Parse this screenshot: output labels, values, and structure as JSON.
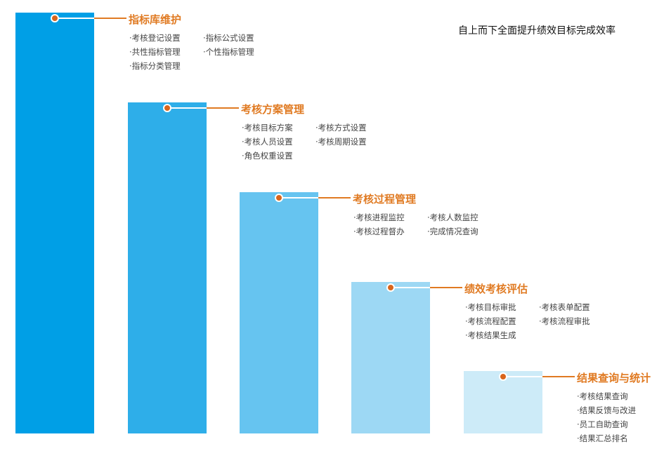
{
  "slogan": "自上而下全面提升绩效目标完成效率",
  "colors": {
    "accent": "#e07a22",
    "bars": [
      "#009fe6",
      "#2eaee9",
      "#66c4f0",
      "#9dd8f4",
      "#cdebf8"
    ]
  },
  "stages": [
    {
      "title": "指标库维护",
      "items": [
        "·考核登记设置",
        "·指标公式设置",
        "·共性指标管理",
        "·个性指标管理",
        "·指标分类管理"
      ]
    },
    {
      "title": "考核方案管理",
      "items": [
        "·考核目标方案",
        "·考核方式设置",
        "·考核人员设置",
        "·考核周期设置",
        "·角色权重设置"
      ]
    },
    {
      "title": "考核过程管理",
      "items": [
        "·考核进程监控",
        "·考核人数监控",
        "·考核过程督办",
        "·完成情况查询"
      ]
    },
    {
      "title": "绩效考核评估",
      "items": [
        "·考核目标审批",
        "·考核表单配置",
        "·考核流程配置",
        "·考核流程审批",
        "·考核结果生成"
      ]
    },
    {
      "title": "结果查询与统计",
      "items": [
        "·考核结果查询",
        "·结果反馈与改进",
        "·员工自助查询",
        "·结果汇总排名"
      ]
    }
  ]
}
